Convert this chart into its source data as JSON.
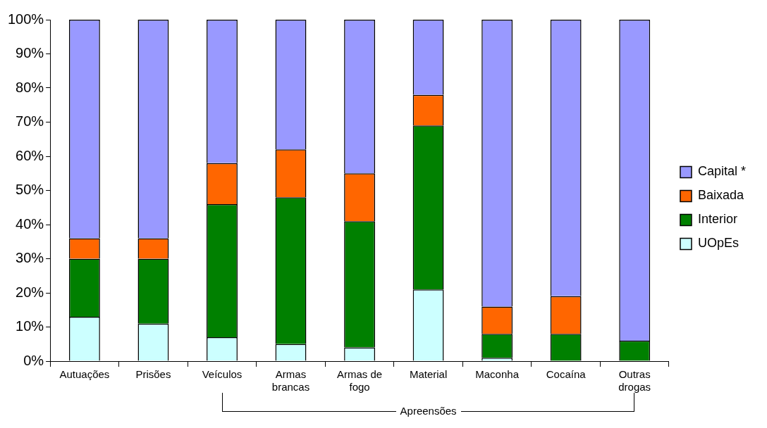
{
  "chart_data": {
    "type": "bar",
    "stacked": true,
    "categories": [
      "Autuações",
      "Prisões",
      "Veículos",
      "Armas brancas",
      "Armas de fogo",
      "Material",
      "Maconha",
      "Cocaína",
      "Outras drogas"
    ],
    "series": [
      {
        "name": "UOpEs",
        "color": "#ccffff",
        "values": [
          13,
          11,
          7,
          5,
          4,
          21,
          1,
          0,
          0
        ]
      },
      {
        "name": "Interior",
        "color": "#008000",
        "values": [
          17,
          19,
          39,
          43,
          37,
          48,
          7,
          8,
          6
        ]
      },
      {
        "name": "Baixada",
        "color": "#ff6600",
        "values": [
          6,
          6,
          12,
          14,
          14,
          9,
          8,
          11,
          0
        ]
      },
      {
        "name": "Capital *",
        "color": "#9999ff",
        "values": [
          64,
          64,
          42,
          38,
          45,
          22,
          84,
          81,
          94
        ]
      }
    ],
    "ylim": [
      0,
      100
    ],
    "yticks": [
      {
        "value": 0,
        "label": "0%"
      },
      {
        "value": 10,
        "label": "10%"
      },
      {
        "value": 20,
        "label": "20%"
      },
      {
        "value": 30,
        "label": "30%"
      },
      {
        "value": 40,
        "label": "40%"
      },
      {
        "value": 50,
        "label": "50%"
      },
      {
        "value": 60,
        "label": "60%"
      },
      {
        "value": 70,
        "label": "70%"
      },
      {
        "value": 80,
        "label": "80%"
      },
      {
        "value": 90,
        "label": "90%"
      },
      {
        "value": 100,
        "label": "100%"
      }
    ],
    "grid": false,
    "legend": "right",
    "annotations": [
      "Apreensões"
    ]
  }
}
